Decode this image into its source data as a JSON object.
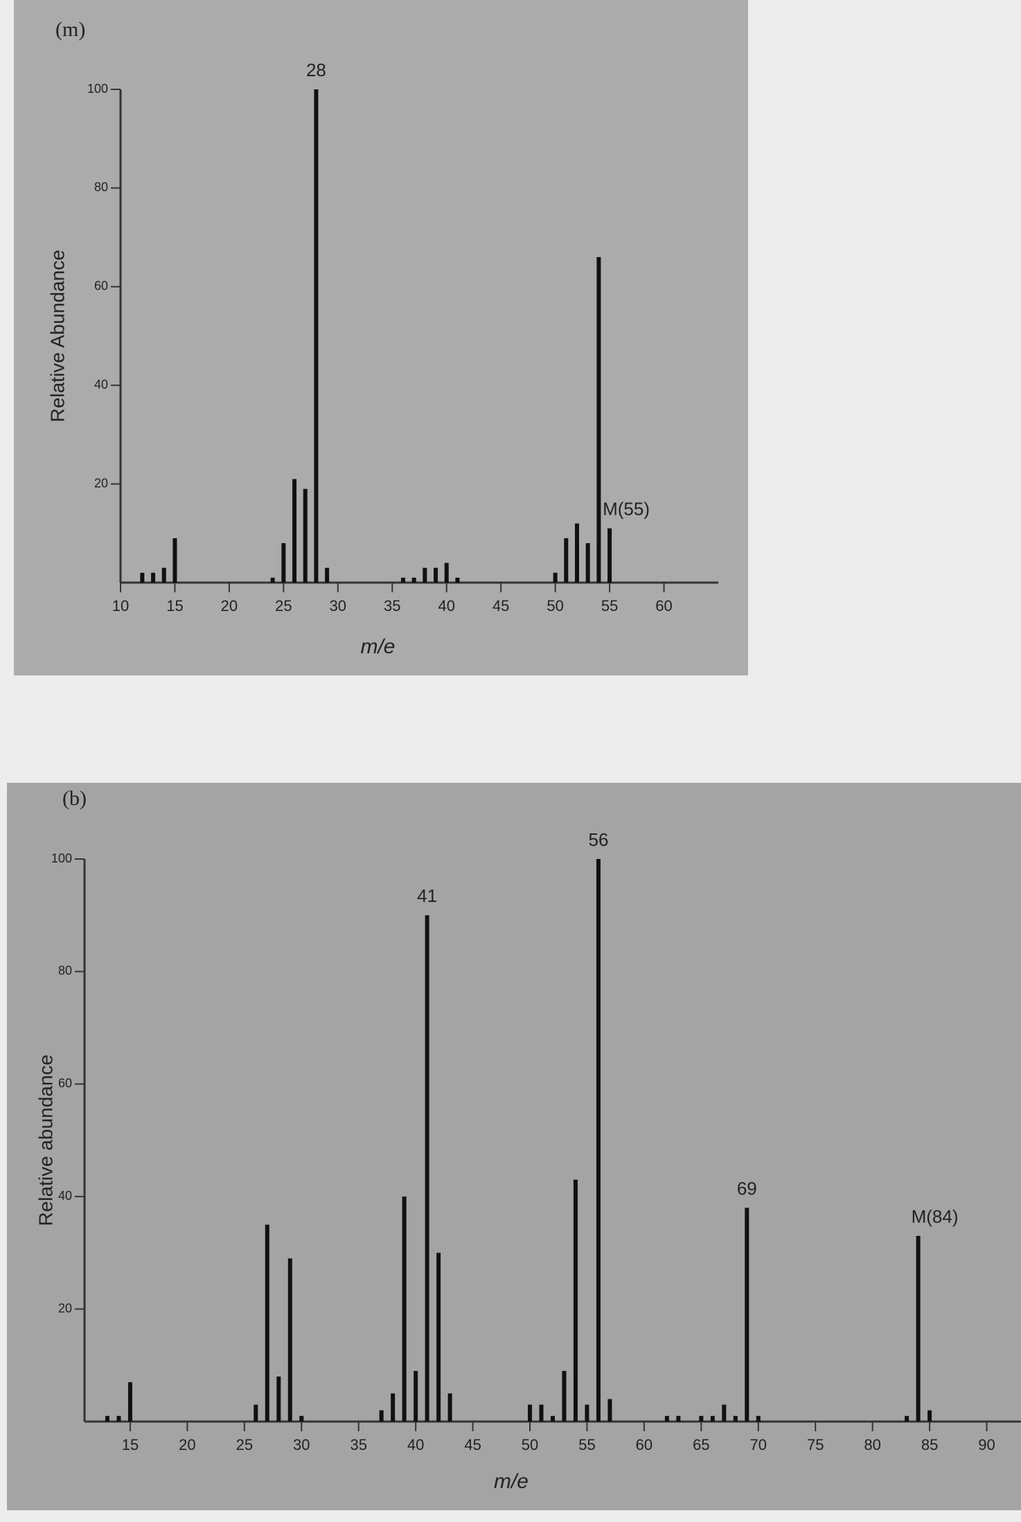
{
  "chart_data": [
    {
      "type": "bar",
      "title": "(m)",
      "xlabel": "m/e",
      "ylabel": "Relative Abundance",
      "color": "#111111",
      "x": [
        12,
        13,
        14,
        15,
        24,
        25,
        26,
        27,
        28,
        29,
        36,
        37,
        38,
        39,
        40,
        41,
        50,
        51,
        52,
        53,
        54,
        55
      ],
      "values": [
        2,
        2,
        3,
        9,
        1,
        8,
        21,
        19,
        100,
        3,
        1,
        1,
        3,
        3,
        4,
        1,
        2,
        9,
        12,
        8,
        66,
        11
      ],
      "xlim": [
        10,
        65
      ],
      "xticks": [
        10,
        15,
        20,
        25,
        30,
        35,
        40,
        45,
        50,
        55,
        60
      ],
      "ylim": [
        0,
        100
      ],
      "yticks": [
        20,
        40,
        60,
        80,
        100
      ],
      "annotations": [
        {
          "text": "28",
          "x": 28
        },
        {
          "text": "M(55)",
          "x": 55
        }
      ]
    },
    {
      "type": "bar",
      "title": "(b)",
      "xlabel": "m/e",
      "ylabel": "Relative abundance",
      "color": "#111111",
      "x": [
        13,
        14,
        15,
        26,
        27,
        28,
        29,
        30,
        37,
        38,
        39,
        40,
        41,
        42,
        43,
        50,
        51,
        52,
        53,
        54,
        55,
        56,
        57,
        62,
        63,
        65,
        66,
        67,
        68,
        69,
        70,
        83,
        84,
        85
      ],
      "values": [
        1,
        1,
        7,
        3,
        35,
        8,
        29,
        1,
        2,
        5,
        40,
        9,
        90,
        30,
        5,
        3,
        3,
        1,
        9,
        43,
        3,
        100,
        4,
        1,
        1,
        1,
        1,
        3,
        1,
        38,
        1,
        1,
        33,
        2
      ],
      "xlim": [
        11,
        93
      ],
      "xticks": [
        15,
        20,
        25,
        30,
        35,
        40,
        45,
        50,
        55,
        60,
        65,
        70,
        75,
        80,
        85,
        90
      ],
      "ylim": [
        0,
        100
      ],
      "yticks": [
        20,
        40,
        60,
        80,
        100
      ],
      "annotations": [
        {
          "text": "41",
          "x": 41
        },
        {
          "text": "56",
          "x": 56
        },
        {
          "text": "69",
          "x": 69
        },
        {
          "text": "M(84)",
          "x": 84
        }
      ]
    }
  ]
}
